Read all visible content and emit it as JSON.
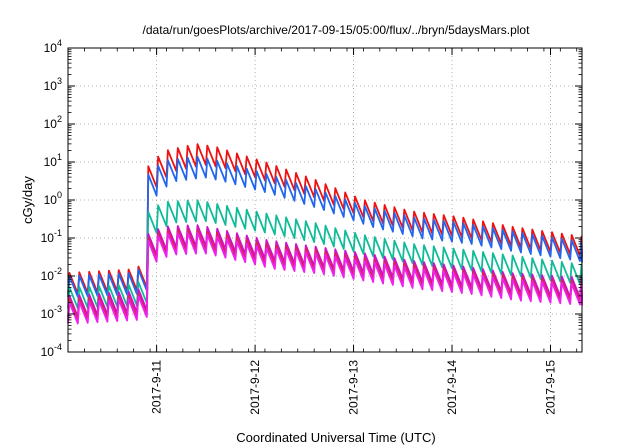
{
  "chart_data": {
    "type": "line",
    "title": "/data/run/goesPlots/archive/2017-09-15/05:00/flux/../bryn/5daysMars.plot",
    "xlabel": "Coordinated Universal Time (UTC)",
    "ylabel": "cGy/day",
    "x_range_days": [
      0.0,
      5.22
    ],
    "x_ticks": [
      {
        "x": 0.9,
        "label": "2017-9-11"
      },
      {
        "x": 1.9,
        "label": "2017-9-12"
      },
      {
        "x": 2.9,
        "label": "2017-9-13"
      },
      {
        "x": 3.9,
        "label": "2017-9-14"
      },
      {
        "x": 4.9,
        "label": "2017-9-15"
      }
    ],
    "y_scale": "log",
    "ylim": [
      0.0001,
      10000
    ],
    "y_ticks": [
      {
        "base": "10",
        "exp": "-4"
      },
      {
        "base": "10",
        "exp": "-3"
      },
      {
        "base": "10",
        "exp": "-2"
      },
      {
        "base": "10",
        "exp": "-1"
      },
      {
        "base": "10",
        "exp": "0"
      },
      {
        "base": "10",
        "exp": "1"
      },
      {
        "base": "10",
        "exp": "2"
      },
      {
        "base": "10",
        "exp": "3"
      },
      {
        "base": "10",
        "exp": "4"
      }
    ],
    "grid": true,
    "sawtooth_period_days": 0.1,
    "oscillation_amplitude_log10": 0.55,
    "series": [
      {
        "color": "#ee1111",
        "upper_envelope": [
          [
            0.0,
            0.012
          ],
          [
            0.65,
            0.015
          ],
          [
            0.72,
            0.018
          ],
          [
            0.74,
            3.5
          ],
          [
            0.84,
            10
          ],
          [
            1.0,
            20
          ],
          [
            1.3,
            30
          ],
          [
            1.5,
            25
          ],
          [
            2.0,
            10
          ],
          [
            2.5,
            3.5
          ],
          [
            3.0,
            1.0
          ],
          [
            3.5,
            0.5
          ],
          [
            4.0,
            0.35
          ],
          [
            4.5,
            0.2
          ],
          [
            5.22,
            0.11
          ]
        ]
      },
      {
        "color": "#2266ee",
        "upper_envelope": [
          [
            0.0,
            0.01
          ],
          [
            0.65,
            0.012
          ],
          [
            0.72,
            0.015
          ],
          [
            0.74,
            2.2
          ],
          [
            0.84,
            6
          ],
          [
            1.0,
            11
          ],
          [
            1.3,
            14
          ],
          [
            1.5,
            11
          ],
          [
            2.0,
            5
          ],
          [
            2.5,
            2.0
          ],
          [
            3.0,
            0.7
          ],
          [
            3.5,
            0.35
          ],
          [
            4.0,
            0.25
          ],
          [
            4.5,
            0.15
          ],
          [
            5.22,
            0.08
          ]
        ]
      },
      {
        "color": "#11bb99",
        "upper_envelope": [
          [
            0.0,
            0.005
          ],
          [
            0.65,
            0.006
          ],
          [
            0.72,
            0.007
          ],
          [
            0.74,
            0.25
          ],
          [
            0.84,
            0.6
          ],
          [
            1.0,
            0.9
          ],
          [
            1.3,
            1.0
          ],
          [
            1.5,
            0.8
          ],
          [
            2.0,
            0.45
          ],
          [
            2.5,
            0.25
          ],
          [
            3.0,
            0.12
          ],
          [
            3.5,
            0.07
          ],
          [
            4.0,
            0.05
          ],
          [
            4.5,
            0.035
          ],
          [
            5.22,
            0.02
          ]
        ]
      },
      {
        "color": "#cc11cc",
        "upper_envelope": [
          [
            0.0,
            0.003
          ],
          [
            0.65,
            0.004
          ],
          [
            0.72,
            0.0045
          ],
          [
            0.74,
            0.08
          ],
          [
            0.84,
            0.15
          ],
          [
            1.0,
            0.2
          ],
          [
            1.3,
            0.22
          ],
          [
            1.5,
            0.18
          ],
          [
            2.0,
            0.09
          ],
          [
            2.5,
            0.06
          ],
          [
            3.0,
            0.04
          ],
          [
            3.5,
            0.025
          ],
          [
            4.0,
            0.018
          ],
          [
            4.5,
            0.012
          ],
          [
            5.22,
            0.009
          ]
        ]
      },
      {
        "color": "#dd2255",
        "upper_envelope": [
          [
            0.0,
            0.0025
          ],
          [
            0.65,
            0.003
          ],
          [
            0.72,
            0.0035
          ],
          [
            0.74,
            0.06
          ],
          [
            0.84,
            0.12
          ],
          [
            1.0,
            0.16
          ],
          [
            1.3,
            0.17
          ],
          [
            1.5,
            0.14
          ],
          [
            2.0,
            0.07
          ],
          [
            2.5,
            0.05
          ],
          [
            3.0,
            0.03
          ],
          [
            3.5,
            0.02
          ],
          [
            4.0,
            0.014
          ],
          [
            4.5,
            0.01
          ],
          [
            5.22,
            0.007
          ]
        ]
      },
      {
        "color": "#ee22ee",
        "upper_envelope": [
          [
            0.0,
            0.002
          ],
          [
            0.65,
            0.0025
          ],
          [
            0.72,
            0.003
          ],
          [
            0.74,
            0.05
          ],
          [
            0.84,
            0.1
          ],
          [
            1.0,
            0.13
          ],
          [
            1.3,
            0.14
          ],
          [
            1.5,
            0.11
          ],
          [
            2.0,
            0.055
          ],
          [
            2.5,
            0.04
          ],
          [
            3.0,
            0.025
          ],
          [
            3.5,
            0.016
          ],
          [
            4.0,
            0.012
          ],
          [
            4.5,
            0.008
          ],
          [
            5.22,
            0.006
          ]
        ]
      }
    ]
  }
}
